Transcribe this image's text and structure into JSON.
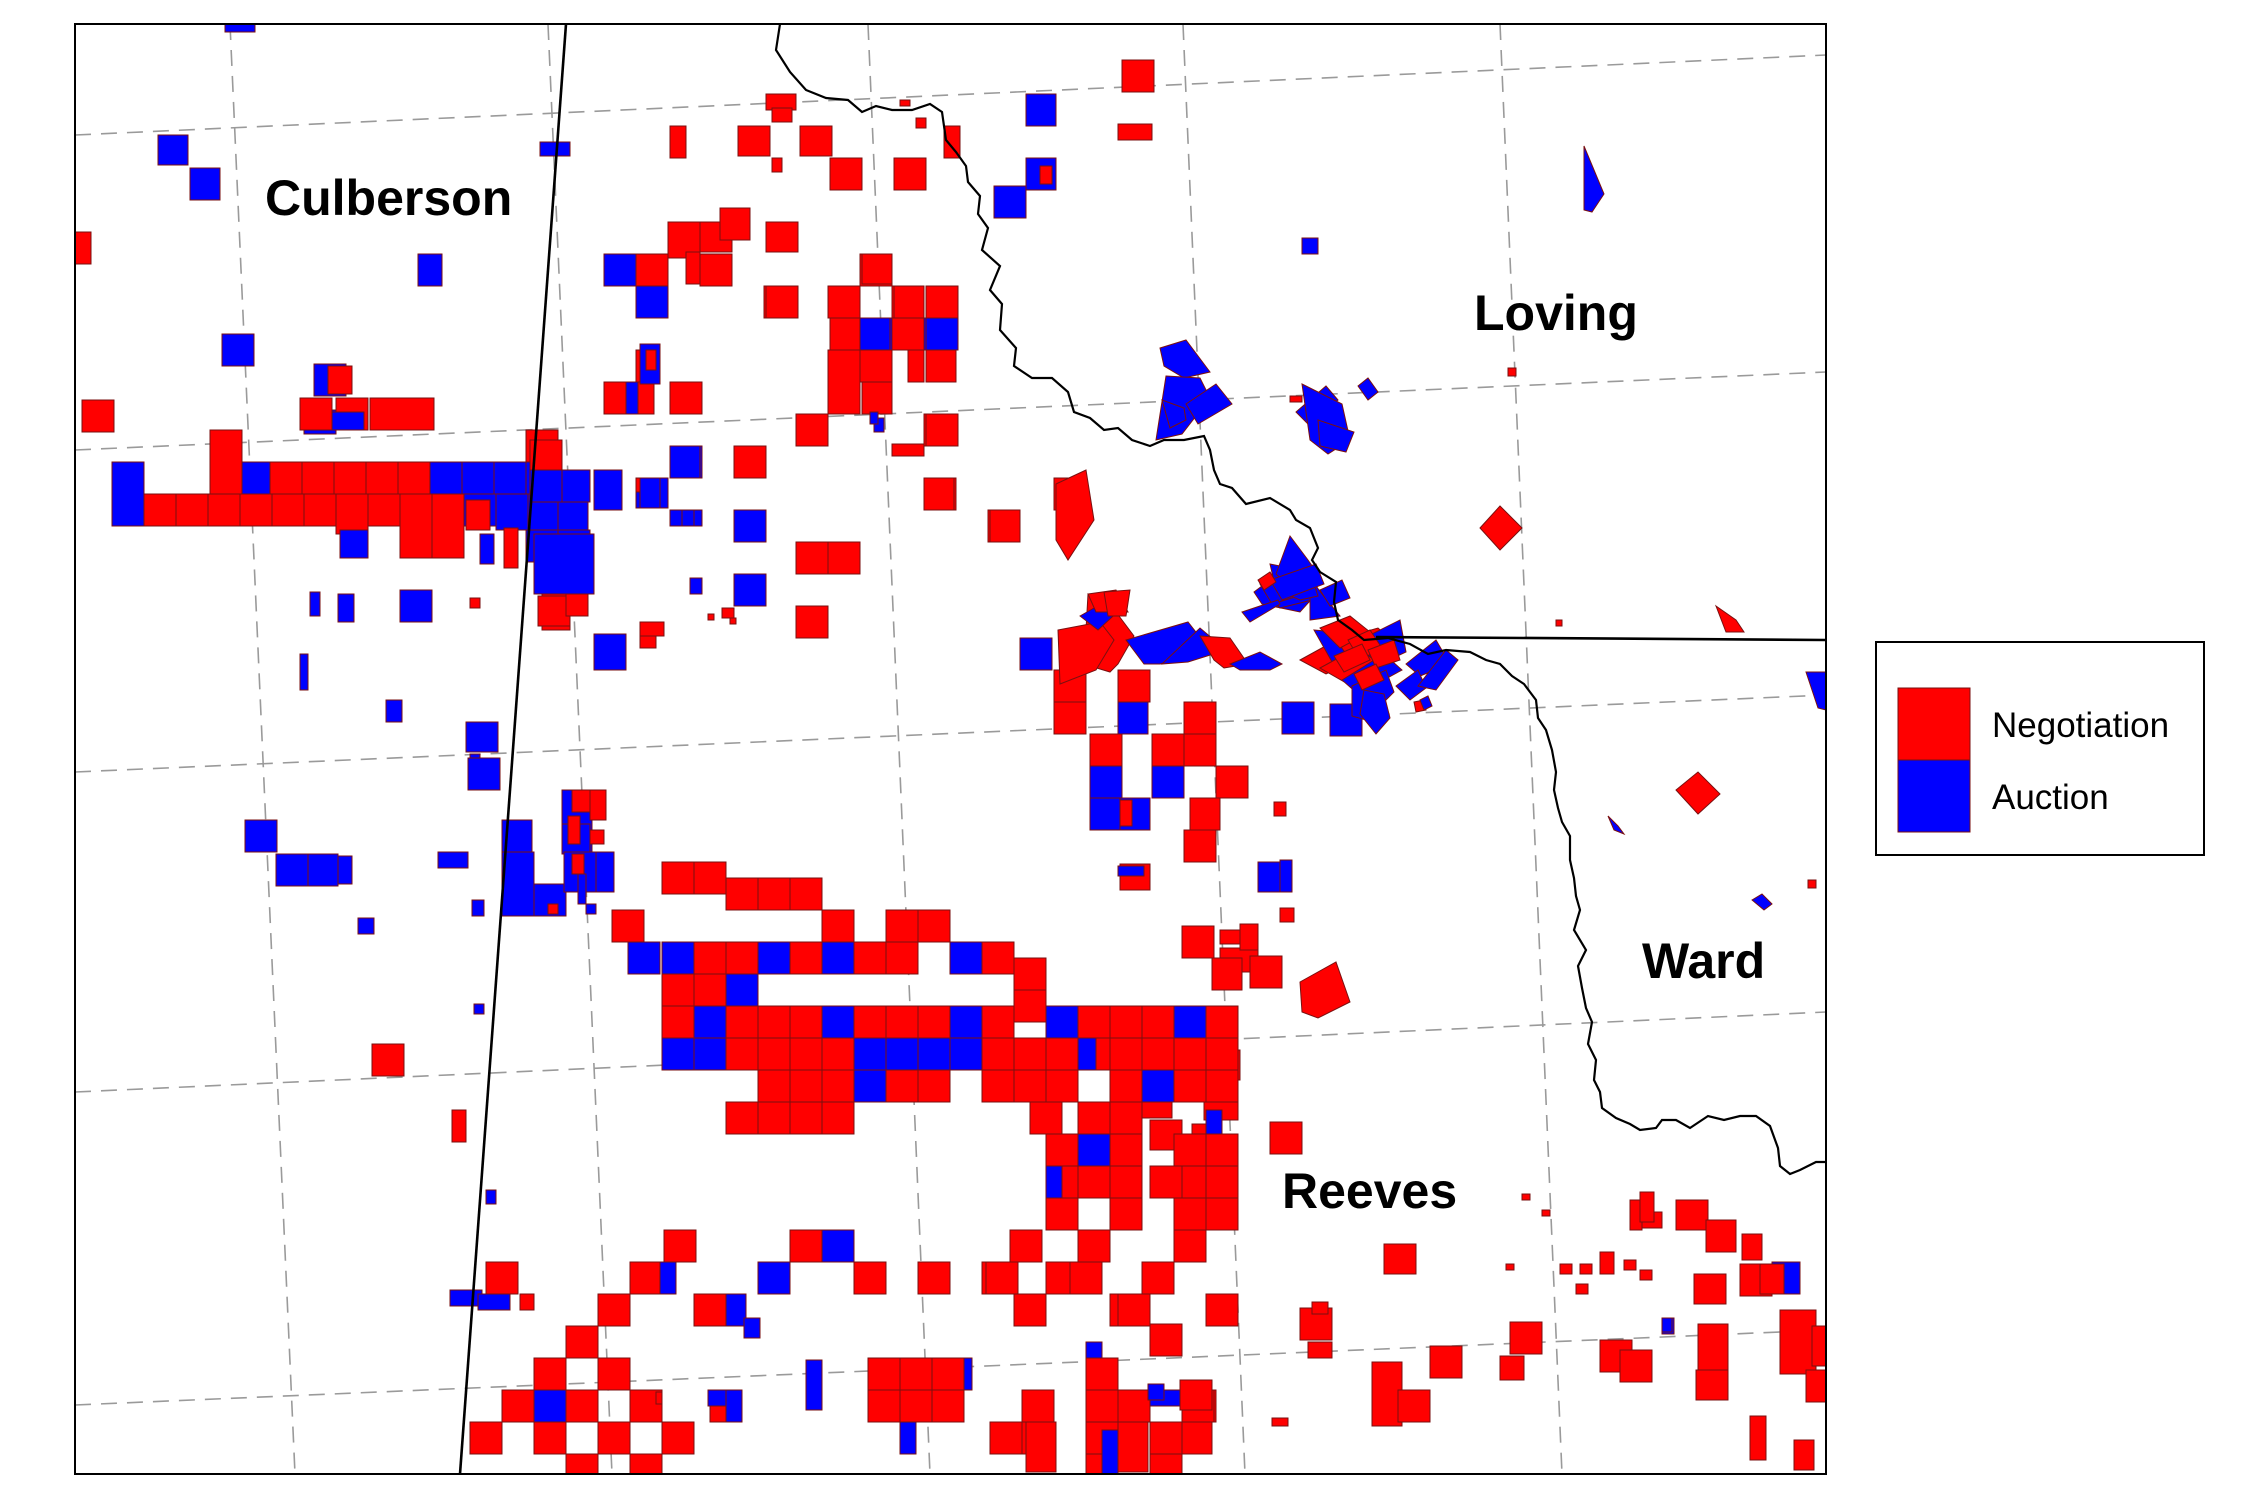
{
  "map": {
    "counties": [
      {
        "name": "Culberson"
      },
      {
        "name": "Loving"
      },
      {
        "name": "Ward"
      },
      {
        "name": "Reeves"
      }
    ]
  },
  "legend": {
    "items": [
      {
        "label": "Negotiation",
        "color": "#ff0000"
      },
      {
        "label": "Auction",
        "color": "#0000ff"
      }
    ]
  },
  "colors": {
    "negotiation": "#ff0000",
    "auction": "#0000ff",
    "boundary": "#000000",
    "grid": "#9a9a9a"
  }
}
